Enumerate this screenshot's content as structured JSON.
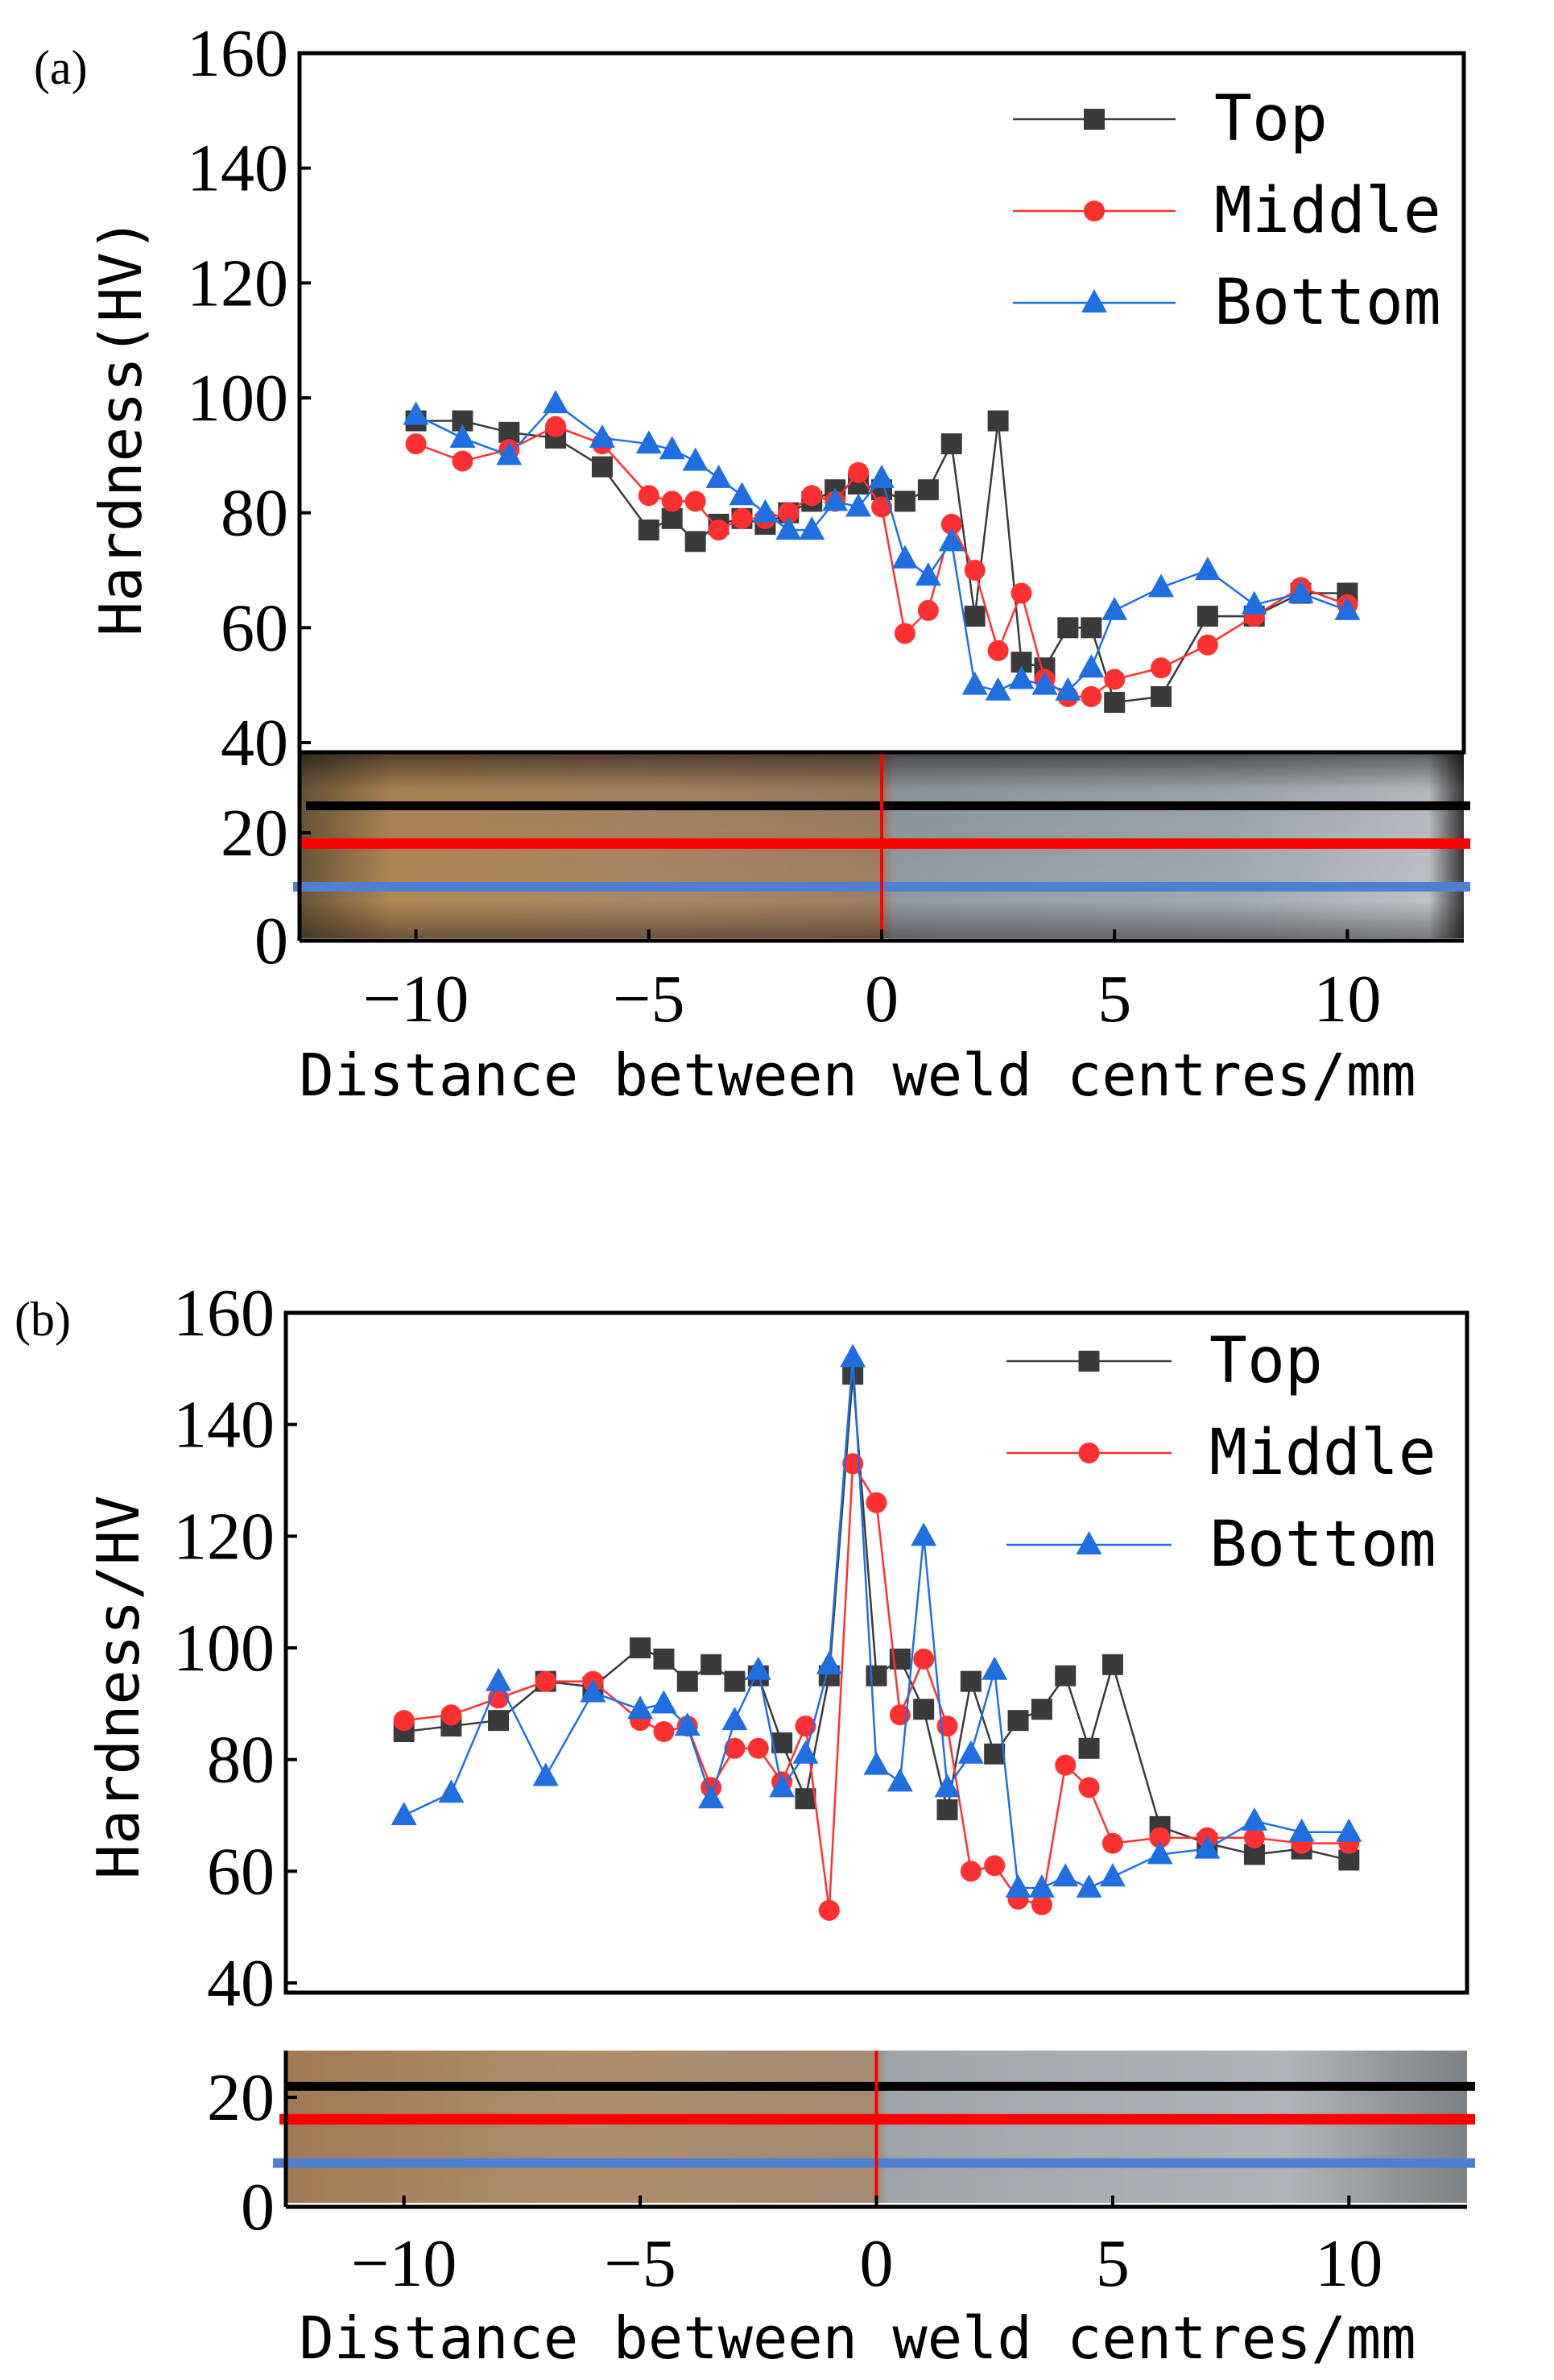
{
  "colors": {
    "top": "#3a3a3a",
    "middle": "#ff3030",
    "bottom": "#1f6fe0",
    "line_top": "#000000",
    "line_middle": "#ff0000",
    "line_bottom": "#4f7fd0",
    "weld_centre": "#ff0000"
  },
  "chart_data": [
    {
      "type": "line",
      "panel_label": "(a)",
      "xlabel": "Distance between weld centres/mm",
      "ylabel": "Hardness(HV)",
      "xlim": [
        -12.5,
        12.5
      ],
      "ylim": [
        0,
        160
      ],
      "xticks": [
        -10,
        -5,
        0,
        5,
        10
      ],
      "xtick_labels": [
        "−10",
        "−5",
        "0",
        "5",
        "10"
      ],
      "yticks": [
        0,
        20,
        40,
        60,
        80,
        100,
        120,
        140,
        160
      ],
      "plot_y_range": [
        40,
        160
      ],
      "legend_position": "top-right",
      "image_inset": "weld cross-section photograph, y from 0 to 34",
      "line_heights": {
        "top": 25,
        "middle": 18,
        "bottom": 10
      },
      "series": [
        {
          "name": "Top",
          "color_key": "top",
          "marker": "square",
          "x": [
            -10,
            -9,
            -8,
            -7,
            -6,
            -5,
            -4.5,
            -4,
            -3.5,
            -3,
            -2.5,
            -2,
            -1.5,
            -1,
            -0.5,
            0,
            0.5,
            1,
            1.5,
            2,
            2.5,
            3,
            3.5,
            4,
            4.5,
            5,
            6,
            7,
            8,
            9,
            10
          ],
          "y": [
            96,
            96,
            94,
            93,
            88,
            77,
            79,
            75,
            78,
            79,
            78,
            80,
            82,
            84,
            85,
            84,
            82,
            84,
            92,
            62,
            96,
            54,
            53,
            60,
            60,
            47,
            48,
            62,
            62,
            66,
            66
          ]
        },
        {
          "name": "Middle",
          "color_key": "middle",
          "marker": "circle",
          "x": [
            -10,
            -9,
            -8,
            -7,
            -6,
            -5,
            -4.5,
            -4,
            -3.5,
            -3,
            -2.5,
            -2,
            -1.5,
            -1,
            -0.5,
            0,
            0.5,
            1,
            1.5,
            2,
            2.5,
            3,
            3.5,
            4,
            4.5,
            5,
            6,
            7,
            8,
            9,
            10
          ],
          "y": [
            92,
            89,
            91,
            95,
            92,
            83,
            82,
            82,
            77,
            79,
            79,
            80,
            83,
            82,
            87,
            81,
            59,
            63,
            78,
            70,
            56,
            66,
            51,
            48,
            48,
            51,
            53,
            57,
            62,
            67,
            64
          ]
        },
        {
          "name": "Bottom",
          "color_key": "bottom",
          "marker": "triangle",
          "x": [
            -10,
            -9,
            -8,
            -7,
            -6,
            -5,
            -4.5,
            -4,
            -3.5,
            -3,
            -2.5,
            -2,
            -1.5,
            -1,
            -0.5,
            0,
            0.5,
            1,
            1.5,
            2,
            2.5,
            3,
            3.5,
            4,
            4.5,
            5,
            6,
            7,
            8,
            9,
            10
          ],
          "y": [
            97,
            93,
            90,
            99,
            93,
            92,
            91,
            89,
            86,
            83,
            80,
            77,
            77,
            82,
            81,
            86,
            72,
            69,
            75,
            50,
            49,
            51,
            50,
            49,
            53,
            63,
            67,
            70,
            64,
            66,
            63
          ]
        }
      ]
    },
    {
      "type": "line",
      "panel_label": "(b)",
      "xlabel": "Distance between weld centres/mm",
      "ylabel": "Hardness/HV",
      "xlim": [
        -12.5,
        12.5
      ],
      "ylim": [
        0,
        160
      ],
      "xticks": [
        -10,
        -5,
        0,
        5,
        10
      ],
      "xtick_labels": [
        "−10",
        "−5",
        "0",
        "5",
        "10"
      ],
      "yticks": [
        0,
        20,
        40,
        60,
        80,
        100,
        120,
        140,
        160
      ],
      "plot_y_range": [
        40,
        160
      ],
      "legend_position": "top-right",
      "image_inset": "weld cross-section photograph, y from 0 to 28",
      "line_heights": {
        "top": 22,
        "middle": 16,
        "bottom": 8
      },
      "series": [
        {
          "name": "Top",
          "color_key": "top",
          "marker": "square",
          "x": [
            -10,
            -9,
            -8,
            -7,
            -6,
            -5,
            -4.5,
            -4,
            -3.5,
            -3,
            -2.5,
            -2,
            -1.5,
            -1,
            -0.5,
            0,
            0.5,
            1,
            1.5,
            2,
            2.5,
            3,
            3.5,
            4,
            4.5,
            5,
            6,
            7,
            8,
            9,
            10
          ],
          "y": [
            85,
            86,
            87,
            94,
            93,
            100,
            98,
            94,
            97,
            94,
            95,
            83,
            73,
            95,
            149,
            95,
            98,
            89,
            71,
            94,
            81,
            87,
            89,
            95,
            82,
            97,
            68,
            65,
            63,
            64,
            62
          ]
        },
        {
          "name": "Middle",
          "color_key": "middle",
          "marker": "circle",
          "x": [
            -10,
            -9,
            -8,
            -7,
            -6,
            -5,
            -4.5,
            -4,
            -3.5,
            -3,
            -2.5,
            -2,
            -1.5,
            -1,
            -0.5,
            0,
            0.5,
            1,
            1.5,
            2,
            2.5,
            3,
            3.5,
            4,
            4.5,
            5,
            6,
            7,
            8,
            9,
            10
          ],
          "y": [
            87,
            88,
            91,
            94,
            94,
            87,
            85,
            86,
            75,
            82,
            82,
            76,
            86,
            53,
            133,
            126,
            88,
            98,
            86,
            60,
            61,
            55,
            54,
            79,
            75,
            65,
            66,
            66,
            66,
            65,
            65
          ]
        },
        {
          "name": "Bottom",
          "color_key": "bottom",
          "marker": "triangle",
          "x": [
            -10,
            -9,
            -8,
            -7,
            -6,
            -5,
            -4.5,
            -4,
            -3.5,
            -3,
            -2.5,
            -2,
            -1.5,
            -1,
            -0.5,
            0,
            0.5,
            1,
            1.5,
            2,
            2.5,
            3,
            3.5,
            4,
            4.5,
            5,
            6,
            7,
            8,
            9,
            10
          ],
          "y": [
            70,
            74,
            94,
            77,
            92,
            89,
            90,
            86,
            73,
            87,
            96,
            75,
            81,
            97,
            152,
            79,
            76,
            120,
            75,
            81,
            96,
            57,
            57,
            59,
            57,
            59,
            63,
            64,
            69,
            67,
            67
          ]
        }
      ]
    }
  ]
}
